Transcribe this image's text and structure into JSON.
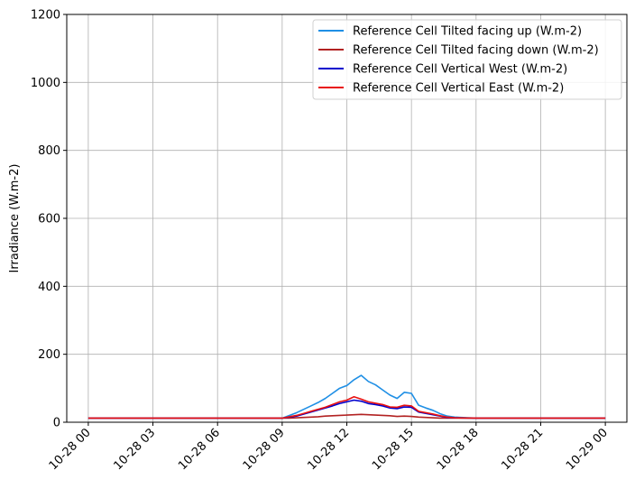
{
  "chart_data": {
    "type": "line",
    "title": "",
    "xlabel": "",
    "ylabel": "Irradiance (W.m-2)",
    "ylim": [
      0,
      1200
    ],
    "xlim": [
      "2023-10-27 23:00",
      "2023-10-29 01:00"
    ],
    "x_ticks": [
      "10-28 00",
      "10-28 03",
      "10-28 06",
      "10-28 09",
      "10-28 12",
      "10-28 15",
      "10-28 18",
      "10-28 21",
      "10-29 00"
    ],
    "y_ticks": [
      "0",
      "200",
      "400",
      "600",
      "800",
      "1000",
      "1200"
    ],
    "y_tick_values": [
      0,
      200,
      400,
      600,
      800,
      1000,
      1200
    ],
    "grid": true,
    "legend_position": "top-right",
    "x": [
      "10-28 00:00",
      "10-28 01:00",
      "10-28 02:00",
      "10-28 03:00",
      "10-28 04:00",
      "10-28 05:00",
      "10-28 06:00",
      "10-28 07:00",
      "10-28 08:00",
      "10-28 09:00",
      "10-28 09:20",
      "10-28 09:40",
      "10-28 10:00",
      "10-28 10:20",
      "10-28 10:40",
      "10-28 11:00",
      "10-28 11:20",
      "10-28 11:40",
      "10-28 12:00",
      "10-28 12:20",
      "10-28 12:40",
      "10-28 13:00",
      "10-28 13:20",
      "10-28 13:40",
      "10-28 14:00",
      "10-28 14:20",
      "10-28 14:40",
      "10-28 15:00",
      "10-28 15:20",
      "10-28 15:40",
      "10-28 16:00",
      "10-28 16:20",
      "10-28 16:40",
      "10-28 17:00",
      "10-28 18:00",
      "10-28 19:00",
      "10-28 20:00",
      "10-28 21:00",
      "10-28 22:00",
      "10-28 23:00",
      "10-29 00:00"
    ],
    "series": [
      {
        "name": "Reference Cell Tilted facing up (W.m-2)",
        "color": "#1f8fe5",
        "values": [
          12,
          12,
          12,
          12,
          12,
          12,
          12,
          12,
          12,
          12,
          20,
          28,
          38,
          48,
          58,
          70,
          85,
          100,
          108,
          125,
          138,
          120,
          110,
          95,
          80,
          70,
          88,
          85,
          50,
          42,
          35,
          25,
          18,
          15,
          12,
          12,
          12,
          12,
          12,
          12,
          12
        ]
      },
      {
        "name": "Reference Cell Tilted facing down (W.m-2)",
        "color": "#b22222",
        "values": [
          12,
          12,
          12,
          12,
          12,
          12,
          12,
          12,
          12,
          12,
          12,
          13,
          14,
          15,
          16,
          18,
          19,
          20,
          21,
          22,
          23,
          22,
          21,
          20,
          19,
          17,
          18,
          17,
          15,
          14,
          13,
          12,
          12,
          12,
          12,
          12,
          12,
          12,
          12,
          12,
          12
        ]
      },
      {
        "name": "Reference Cell Vertical West (W.m-2)",
        "color": "#0000cd",
        "values": [
          12,
          12,
          12,
          12,
          12,
          12,
          12,
          12,
          12,
          12,
          15,
          18,
          24,
          30,
          36,
          42,
          48,
          55,
          60,
          65,
          62,
          55,
          52,
          48,
          42,
          40,
          45,
          44,
          30,
          26,
          22,
          18,
          14,
          13,
          12,
          12,
          12,
          12,
          12,
          12,
          12
        ]
      },
      {
        "name": "Reference Cell Vertical East (W.m-2)",
        "color": "#e81010",
        "values": [
          12,
          12,
          12,
          12,
          12,
          12,
          12,
          12,
          12,
          12,
          16,
          20,
          26,
          32,
          38,
          44,
          52,
          60,
          65,
          75,
          68,
          60,
          56,
          52,
          45,
          44,
          50,
          48,
          32,
          28,
          24,
          19,
          15,
          13,
          12,
          12,
          12,
          12,
          12,
          12,
          12
        ]
      }
    ]
  }
}
